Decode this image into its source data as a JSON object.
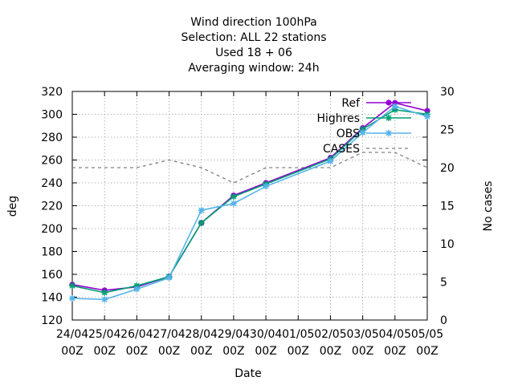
{
  "chart_data": {
    "type": "line",
    "title_lines": [
      "Wind direction 100hPa",
      "Selection: ALL      22 stations",
      "Used  18 + 06",
      "Averaging window: 24h"
    ],
    "xlabel": "Date",
    "ylabel": "deg",
    "y2label": "No cases",
    "x_ticks": [
      [
        "24/04",
        "00Z"
      ],
      [
        "25/04",
        "00Z"
      ],
      [
        "26/04",
        "00Z"
      ],
      [
        "27/04",
        "00Z"
      ],
      [
        "28/04",
        "00Z"
      ],
      [
        "29/04",
        "00Z"
      ],
      [
        "30/04",
        "00Z"
      ],
      [
        "01/05",
        "00Z"
      ],
      [
        "02/05",
        "00Z"
      ],
      [
        "03/05",
        "00Z"
      ],
      [
        "04/05",
        "00Z"
      ],
      [
        "05/05",
        "00Z"
      ]
    ],
    "xlim": [
      0,
      11
    ],
    "ylim": [
      120,
      320
    ],
    "y_ticks": [
      120,
      140,
      160,
      180,
      200,
      220,
      240,
      260,
      280,
      300,
      320
    ],
    "y2lim": [
      0,
      30
    ],
    "y2_ticks": [
      0,
      5,
      10,
      15,
      20,
      25,
      30
    ],
    "grid": true,
    "legend_position": "top-right",
    "series": [
      {
        "name": "Ref",
        "axis": "y",
        "color": "#9400d3",
        "marker": "filled-circle",
        "points": [
          [
            0,
            151
          ],
          [
            1,
            146
          ],
          [
            2,
            149
          ],
          [
            3,
            158
          ],
          [
            4,
            205
          ],
          [
            5,
            229
          ],
          [
            6,
            240
          ],
          [
            8,
            262
          ],
          [
            9,
            288
          ],
          [
            10,
            310
          ],
          [
            11,
            303
          ]
        ]
      },
      {
        "name": "Highres",
        "axis": "y",
        "color": "#009e73",
        "marker": "star",
        "points": [
          [
            0,
            150
          ],
          [
            1,
            144
          ],
          [
            2,
            150
          ],
          [
            3,
            158
          ],
          [
            4,
            205
          ],
          [
            5,
            228
          ],
          [
            6,
            239
          ],
          [
            8,
            261
          ],
          [
            9,
            287
          ],
          [
            10,
            304
          ],
          [
            11,
            300
          ]
        ]
      },
      {
        "name": "OBS",
        "axis": "y",
        "color": "#56b4e9",
        "marker": "star",
        "points": [
          [
            0,
            139
          ],
          [
            1,
            138
          ],
          [
            2,
            147
          ],
          [
            3,
            157
          ],
          [
            4,
            216
          ],
          [
            5,
            222
          ],
          [
            6,
            237
          ],
          [
            8,
            259
          ],
          [
            9,
            284
          ],
          [
            10,
            307
          ],
          [
            11,
            298
          ]
        ]
      },
      {
        "name": "CASES",
        "axis": "y2",
        "color": "#808080",
        "dashed": true,
        "points": [
          [
            0,
            20
          ],
          [
            1,
            20
          ],
          [
            2,
            20
          ],
          [
            3,
            21
          ],
          [
            4,
            20
          ],
          [
            5,
            18
          ],
          [
            6,
            20
          ],
          [
            7,
            20
          ],
          [
            8,
            20
          ],
          [
            9,
            22
          ],
          [
            10,
            22
          ],
          [
            11,
            20
          ]
        ]
      }
    ]
  }
}
